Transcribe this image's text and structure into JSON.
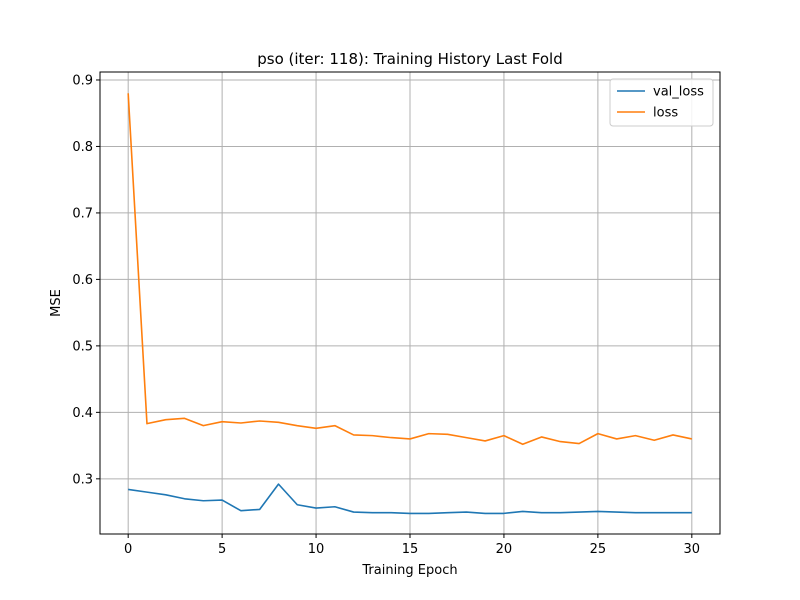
{
  "chart_data": {
    "type": "line",
    "title": "pso (iter: 118): Training History Last Fold",
    "xlabel": "Training Epoch",
    "ylabel": "MSE",
    "xlim": [
      -1.5,
      31.5
    ],
    "ylim": [
      0.217,
      0.912
    ],
    "xticks": [
      0,
      5,
      10,
      15,
      20,
      25,
      30
    ],
    "yticks": [
      0.3,
      0.4,
      0.5,
      0.6,
      0.7,
      0.8,
      0.9
    ],
    "grid": true,
    "legend_position": "top-right",
    "x": [
      0,
      1,
      2,
      3,
      4,
      5,
      6,
      7,
      8,
      9,
      10,
      11,
      12,
      13,
      14,
      15,
      16,
      17,
      18,
      19,
      20,
      21,
      22,
      23,
      24,
      25,
      26,
      27,
      28,
      29,
      30
    ],
    "series": [
      {
        "name": "val_loss",
        "color": "#1f77b4",
        "values": [
          0.284,
          0.28,
          0.276,
          0.27,
          0.267,
          0.268,
          0.252,
          0.254,
          0.292,
          0.261,
          0.256,
          0.258,
          0.25,
          0.249,
          0.249,
          0.248,
          0.248,
          0.249,
          0.25,
          0.248,
          0.248,
          0.251,
          0.249,
          0.249,
          0.25,
          0.251,
          0.25,
          0.249,
          0.249,
          0.249,
          0.249
        ]
      },
      {
        "name": "loss",
        "color": "#ff7f0e",
        "values": [
          0.88,
          0.383,
          0.389,
          0.391,
          0.38,
          0.386,
          0.384,
          0.387,
          0.385,
          0.38,
          0.376,
          0.38,
          0.366,
          0.365,
          0.362,
          0.36,
          0.368,
          0.367,
          0.362,
          0.357,
          0.365,
          0.352,
          0.363,
          0.356,
          0.353,
          0.368,
          0.36,
          0.365,
          0.358,
          0.366,
          0.36
        ]
      }
    ]
  }
}
